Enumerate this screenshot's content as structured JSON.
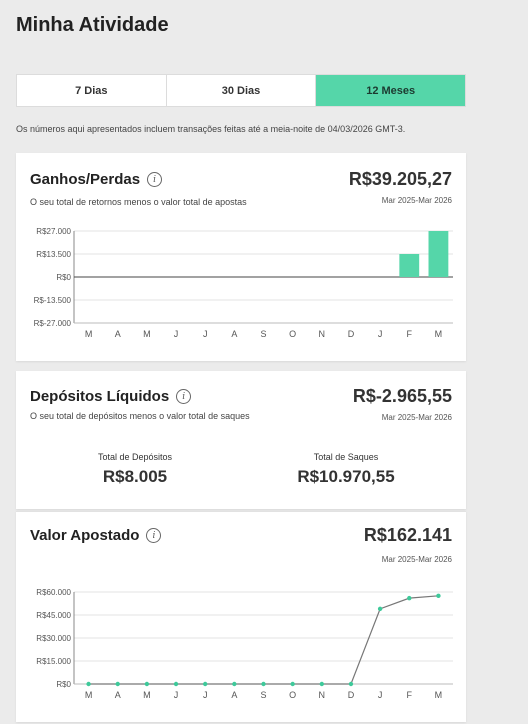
{
  "page": {
    "title": "Minha Atividade"
  },
  "tabs": [
    {
      "label": "7 Dias",
      "active": false
    },
    {
      "label": "30 Dias",
      "active": false
    },
    {
      "label": "12 Meses",
      "active": true
    }
  ],
  "disclaimer": "Os números aqui apresentados incluem transações feitas até a meia-noite de 04/03/2026 GMT-3.",
  "ganhos": {
    "title": "Ganhos/Perdas",
    "subtitle": "O seu total de retornos menos o valor total de apostas",
    "value": "R$39.205,27",
    "range": "Mar 2025-Mar 2026"
  },
  "depositos": {
    "title": "Depósitos Líquidos",
    "subtitle": "O seu total de depósitos menos o valor total de saques",
    "value": "R$-2.965,55",
    "range": "Mar 2025-Mar 2026",
    "total_depositos_label": "Total de Depósitos",
    "total_depositos_value": "R$8.005",
    "total_saques_label": "Total de Saques",
    "total_saques_value": "R$10.970,55"
  },
  "apostado": {
    "title": "Valor Apostado",
    "value": "R$162.141",
    "range": "Mar 2025-Mar 2026"
  },
  "colors": {
    "accent": "#55d6a9",
    "point": "#3ec99a",
    "line": "#777777"
  },
  "chart_data": [
    {
      "type": "bar",
      "categories": [
        "M",
        "A",
        "M",
        "J",
        "J",
        "A",
        "S",
        "O",
        "N",
        "D",
        "J",
        "F",
        "M"
      ],
      "values": [
        0,
        0,
        0,
        0,
        0,
        0,
        0,
        0,
        0,
        0,
        0,
        13500,
        27000
      ],
      "ytick_labels": [
        "R$27.000",
        "R$13.500",
        "R$0",
        "R$-13.500",
        "R$-27.000"
      ],
      "ylim": [
        -27000,
        27000
      ],
      "grid": true
    },
    {
      "type": "line",
      "categories": [
        "M",
        "A",
        "M",
        "J",
        "J",
        "A",
        "S",
        "O",
        "N",
        "D",
        "J",
        "F",
        "M"
      ],
      "values": [
        0,
        0,
        0,
        0,
        0,
        0,
        0,
        0,
        0,
        0,
        49000,
        56000,
        57500
      ],
      "ytick_labels": [
        "R$60.000",
        "R$45.000",
        "R$30.000",
        "R$15.000",
        "R$0"
      ],
      "ylim": [
        0,
        60000
      ],
      "grid": true
    }
  ]
}
